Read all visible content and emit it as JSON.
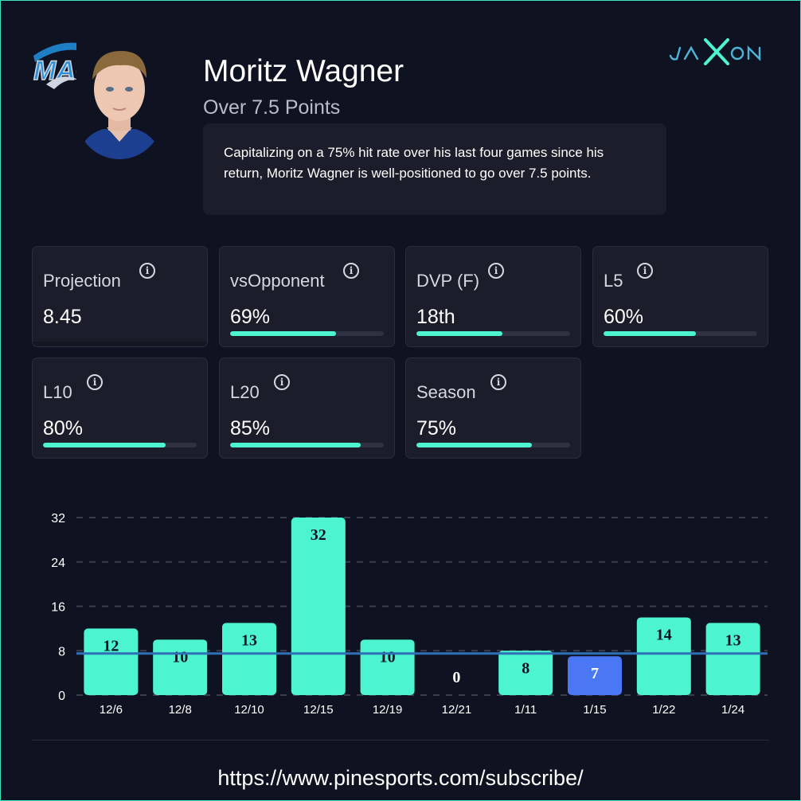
{
  "header": {
    "player_name": "Moritz Wagner",
    "prop_line": "Over 7.5 Points",
    "summary": "Capitalizing on a 75% hit rate over his last four games since his return, Moritz Wagner is well-positioned to go over 7.5 points.",
    "team_logo_icon": "orlando-magic-logo-icon",
    "brand_icon": "jaxon-logo-icon"
  },
  "stats": [
    {
      "label": "Projection",
      "value": "8.45",
      "fill": null
    },
    {
      "label": "vsOpponent",
      "value": "69%",
      "fill": 0.69
    },
    {
      "label": "DVP (F)",
      "value": "18th",
      "fill": 0.56
    },
    {
      "label": "L5",
      "value": "60%",
      "fill": 0.6
    },
    {
      "label": "L10",
      "value": "80%",
      "fill": 0.8
    },
    {
      "label": "L20",
      "value": "85%",
      "fill": 0.85
    },
    {
      "label": "Season",
      "value": "75%",
      "fill": 0.75
    }
  ],
  "colors": {
    "background": "#0f1220",
    "card": "#1b1d2a",
    "accent": "#4cf5d0",
    "under": "#4a78f5",
    "line": "#2f6fb8"
  },
  "chart_data": {
    "type": "bar",
    "categories": [
      "12/6",
      "12/8",
      "12/10",
      "12/15",
      "12/19",
      "12/21",
      "1/11",
      "1/15",
      "1/22",
      "1/24"
    ],
    "values": [
      12,
      10,
      13,
      32,
      10,
      0,
      8,
      7,
      14,
      13
    ],
    "line_value": 7.5,
    "yticks": [
      0,
      8,
      16,
      24,
      32
    ],
    "ylim": [
      0,
      32
    ],
    "grid": true
  },
  "footer": {
    "url": "https://www.pinesports.com/subscribe/"
  }
}
